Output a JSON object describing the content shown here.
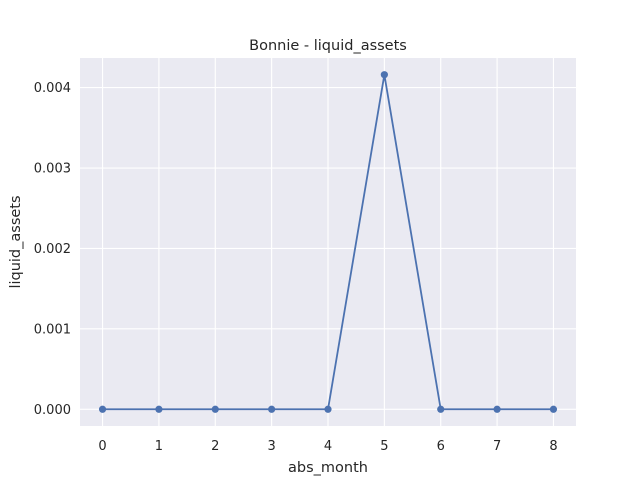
{
  "chart_data": {
    "type": "line",
    "title": "Bonnie - liquid_assets",
    "xlabel": "abs_month",
    "ylabel": "liquid_assets",
    "x": [
      0,
      1,
      2,
      3,
      4,
      5,
      6,
      7,
      8
    ],
    "series": [
      {
        "values": [
          0,
          0,
          0,
          0,
          0,
          0.00416,
          0,
          0,
          0
        ],
        "color": "#4c72b0"
      }
    ],
    "xlim": [
      -0.4,
      8.4
    ],
    "ylim": [
      -0.000208,
      0.004368
    ],
    "x_ticks": [
      0,
      1,
      2,
      3,
      4,
      5,
      6,
      7,
      8
    ],
    "x_tick_labels": [
      "0",
      "1",
      "2",
      "3",
      "4",
      "5",
      "6",
      "7",
      "8"
    ],
    "y_ticks": [
      0,
      0.001,
      0.002,
      0.003,
      0.004
    ],
    "y_tick_labels": [
      "0.000",
      "0.001",
      "0.002",
      "0.003",
      "0.004"
    ],
    "grid": true,
    "marker": "circle",
    "background": "#eaeaf2",
    "grid_color": "#ffffff"
  }
}
